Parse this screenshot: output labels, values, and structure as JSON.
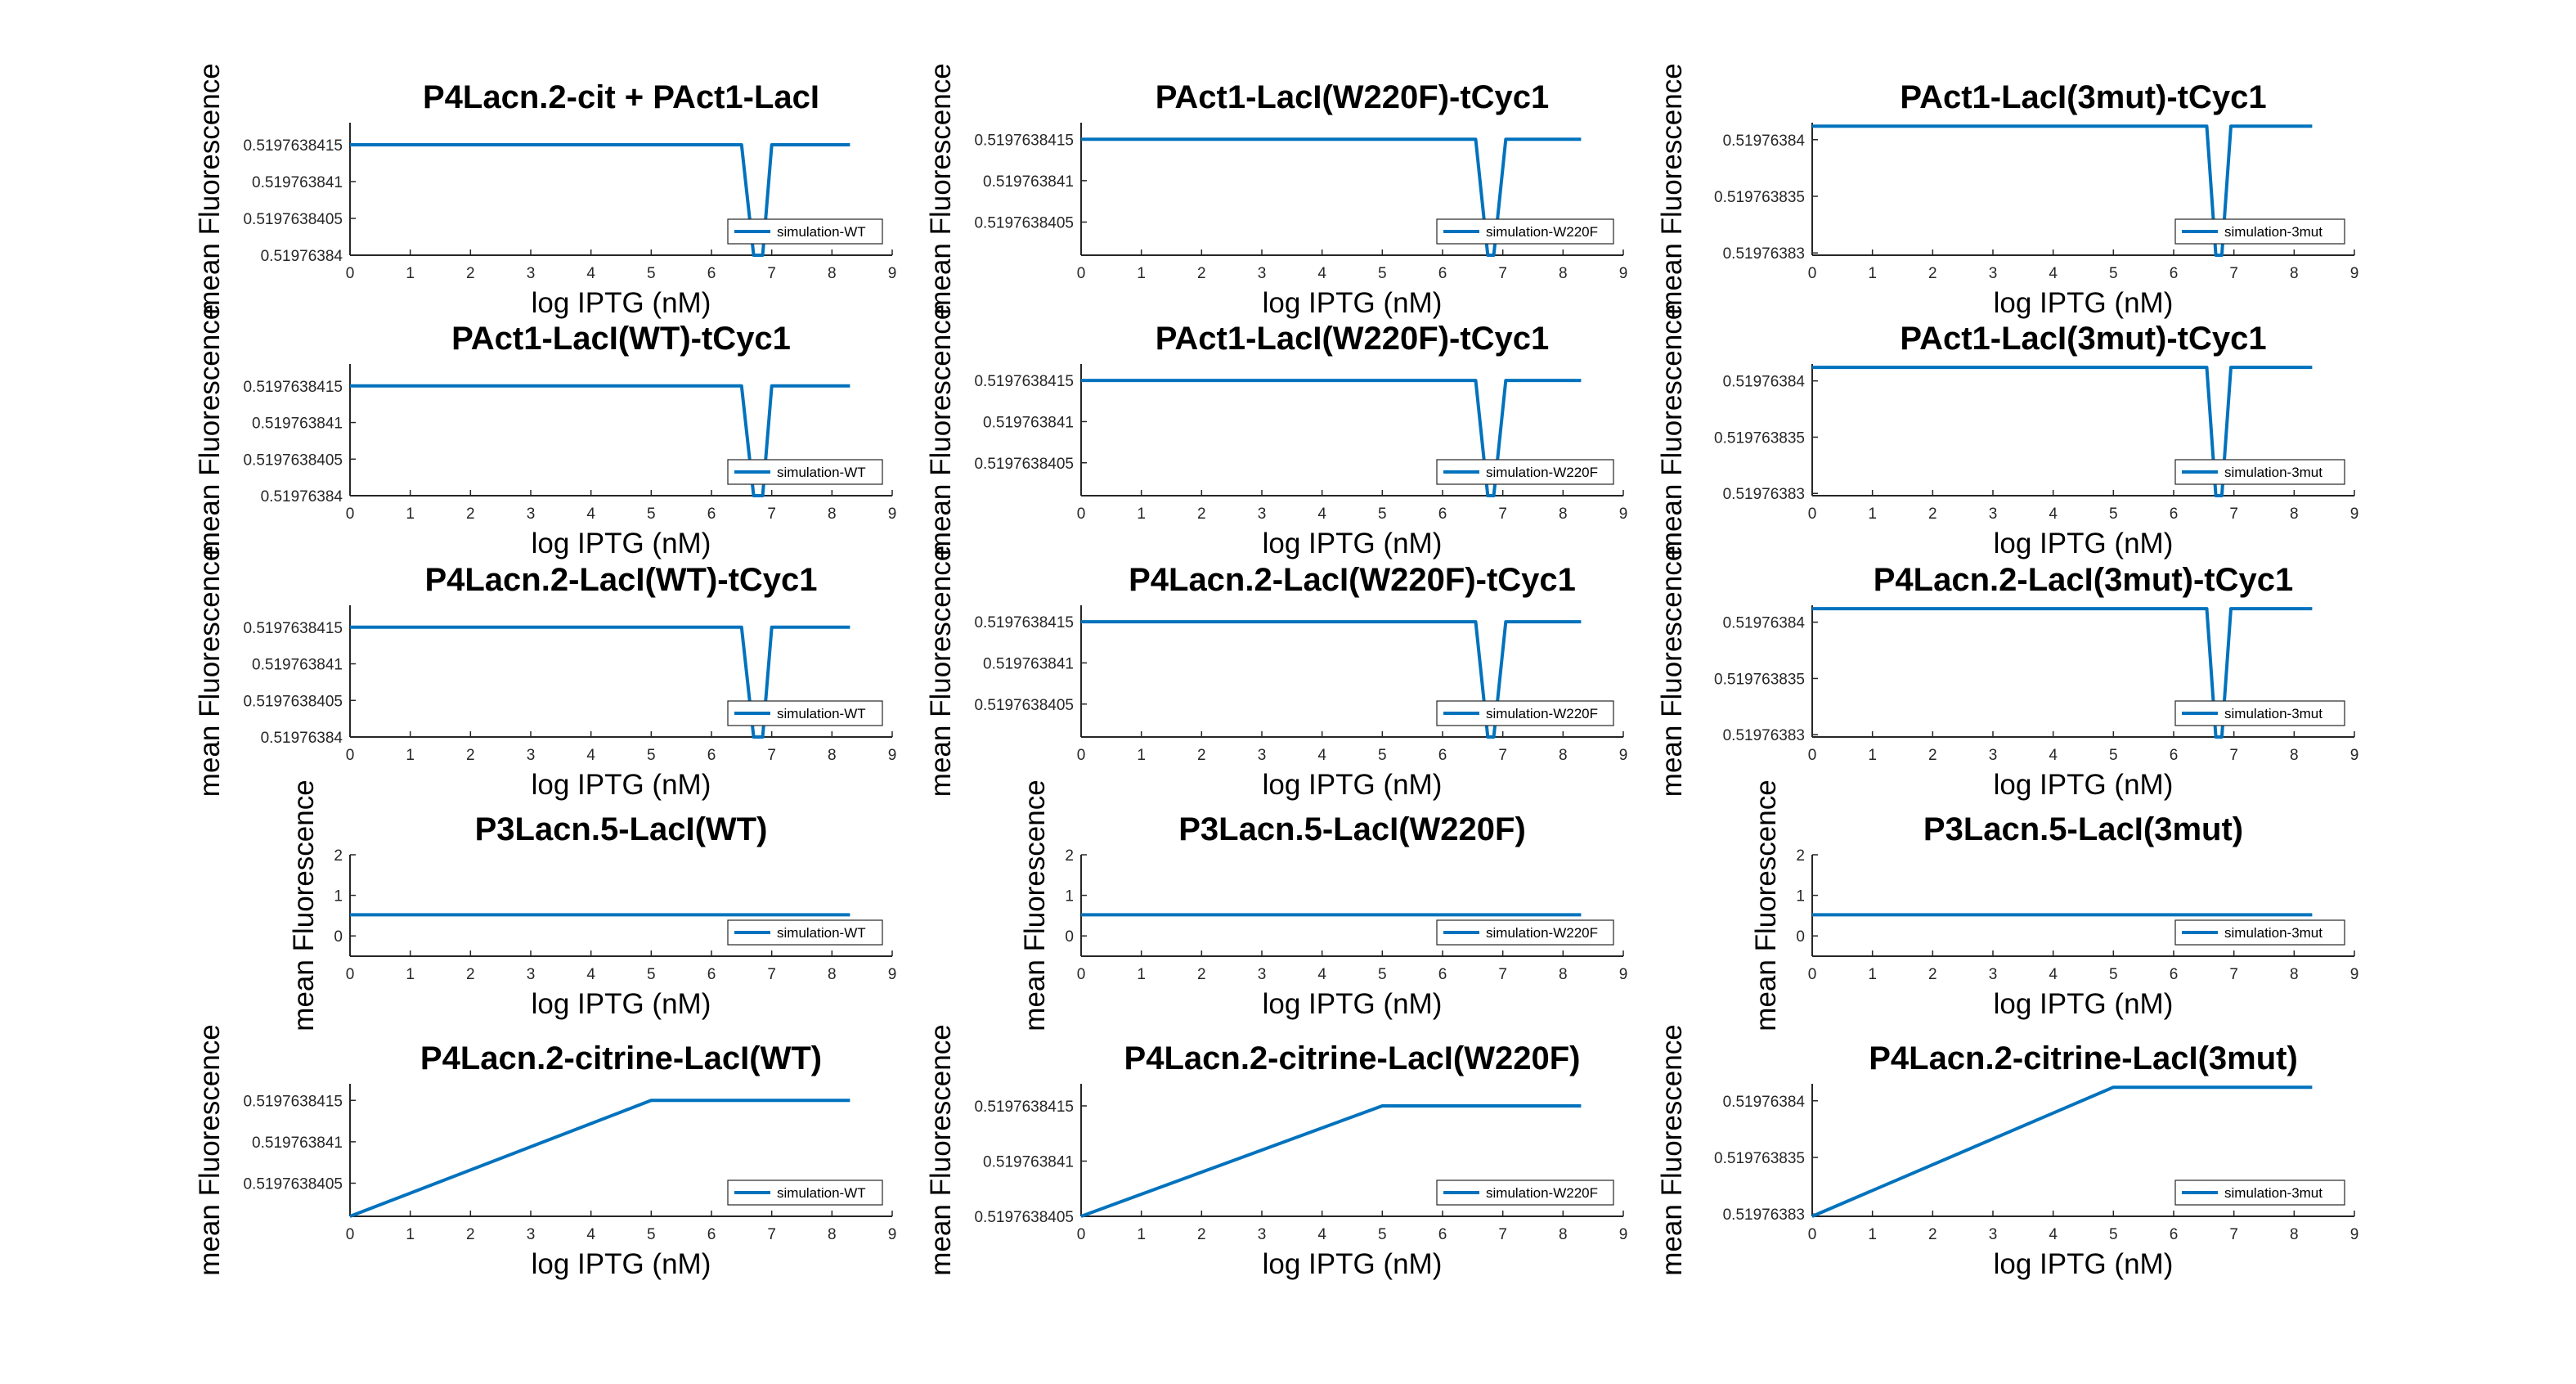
{
  "figure": {
    "background": "#ffffff",
    "line_color": "#0072BD"
  },
  "chart_data": [
    {
      "type": "line",
      "title": "P4Lacn.2-cit + PAct1-LacI",
      "xlabel": "log IPTG (nM)",
      "ylabel": "mean Fluorescence",
      "xlim": [
        0,
        9
      ],
      "ylim": [
        0.51976384,
        0.5197638418
      ],
      "xticks": [
        "0",
        "1",
        "2",
        "3",
        "4",
        "5",
        "6",
        "7",
        "8",
        "9"
      ],
      "yticks": [
        {
          "v": 0.51976384,
          "label": "0.51976384"
        },
        {
          "v": 0.5197638405,
          "label": "0.5197638405"
        },
        {
          "v": 0.519763841,
          "label": "0.519763841"
        },
        {
          "v": 0.5197638415,
          "label": "0.5197638415"
        }
      ],
      "series": [
        {
          "name": "simulation-WT",
          "x": [
            0,
            6.5,
            6.7,
            6.85,
            7.0,
            8.3
          ],
          "y": [
            0.5197638415,
            0.5197638415,
            0.51976384,
            0.51976384,
            0.5197638415,
            0.5197638415
          ]
        }
      ],
      "legend": "bottom-right"
    },
    {
      "type": "line",
      "title": "PAct1-LacI(W220F)-tCyc1",
      "xlabel": "log IPTG (nM)",
      "ylabel": "mean Fluorescence",
      "xlim": [
        0,
        9
      ],
      "ylim": [
        0.5197638401,
        0.5197638417
      ],
      "xticks": [
        "0",
        "1",
        "2",
        "3",
        "4",
        "5",
        "6",
        "7",
        "8",
        "9"
      ],
      "yticks": [
        {
          "v": 0.5197638405,
          "label": "0.5197638405"
        },
        {
          "v": 0.519763841,
          "label": "0.519763841"
        },
        {
          "v": 0.5197638415,
          "label": "0.5197638415"
        }
      ],
      "series": [
        {
          "name": "simulation-W220F",
          "x": [
            0,
            6.55,
            6.75,
            6.85,
            7.05,
            8.3
          ],
          "y": [
            0.5197638415,
            0.5197638415,
            0.5197638401,
            0.5197638401,
            0.5197638415,
            0.5197638415
          ]
        }
      ],
      "legend": "bottom-right"
    },
    {
      "type": "line",
      "title": "PAct1-LacI(3mut)-tCyc1",
      "xlabel": "log IPTG (nM)",
      "ylabel": "mean Fluorescence",
      "xlim": [
        0,
        9
      ],
      "ylim": [
        0.5197638298,
        0.5197638415
      ],
      "xticks": [
        "0",
        "1",
        "2",
        "3",
        "4",
        "5",
        "6",
        "7",
        "8",
        "9"
      ],
      "yticks": [
        {
          "v": 0.51976383,
          "label": "0.51976383"
        },
        {
          "v": 0.519763835,
          "label": "0.519763835"
        },
        {
          "v": 0.51976384,
          "label": "0.51976384"
        }
      ],
      "series": [
        {
          "name": "simulation-3mut",
          "x": [
            0,
            6.55,
            6.7,
            6.8,
            6.95,
            8.3
          ],
          "y": [
            0.5197638412,
            0.5197638412,
            0.5197638298,
            0.5197638298,
            0.5197638412,
            0.5197638412
          ]
        }
      ],
      "legend": "bottom-right"
    },
    {
      "type": "line",
      "title": "PAct1-LacI(WT)-tCyc1",
      "xlabel": "log IPTG (nM)",
      "ylabel": "mean Fluorescence",
      "xlim": [
        0,
        9
      ],
      "ylim": [
        0.51976384,
        0.5197638418
      ],
      "xticks": [
        "0",
        "1",
        "2",
        "3",
        "4",
        "5",
        "6",
        "7",
        "8",
        "9"
      ],
      "yticks": [
        {
          "v": 0.51976384,
          "label": "0.51976384"
        },
        {
          "v": 0.5197638405,
          "label": "0.5197638405"
        },
        {
          "v": 0.519763841,
          "label": "0.519763841"
        },
        {
          "v": 0.5197638415,
          "label": "0.5197638415"
        }
      ],
      "series": [
        {
          "name": "simulation-WT",
          "x": [
            0,
            6.5,
            6.7,
            6.85,
            7.0,
            8.3
          ],
          "y": [
            0.5197638415,
            0.5197638415,
            0.51976384,
            0.51976384,
            0.5197638415,
            0.5197638415
          ]
        }
      ],
      "legend": "bottom-right"
    },
    {
      "type": "line",
      "title": "PAct1-LacI(W220F)-tCyc1",
      "xlabel": "log IPTG (nM)",
      "ylabel": "mean Fluorescence",
      "xlim": [
        0,
        9
      ],
      "ylim": [
        0.5197638401,
        0.5197638417
      ],
      "xticks": [
        "0",
        "1",
        "2",
        "3",
        "4",
        "5",
        "6",
        "7",
        "8",
        "9"
      ],
      "yticks": [
        {
          "v": 0.5197638405,
          "label": "0.5197638405"
        },
        {
          "v": 0.519763841,
          "label": "0.519763841"
        },
        {
          "v": 0.5197638415,
          "label": "0.5197638415"
        }
      ],
      "series": [
        {
          "name": "simulation-W220F",
          "x": [
            0,
            6.55,
            6.75,
            6.85,
            7.05,
            8.3
          ],
          "y": [
            0.5197638415,
            0.5197638415,
            0.5197638401,
            0.5197638401,
            0.5197638415,
            0.5197638415
          ]
        }
      ],
      "legend": "bottom-right"
    },
    {
      "type": "line",
      "title": "PAct1-LacI(3mut)-tCyc1",
      "xlabel": "log IPTG (nM)",
      "ylabel": "mean Fluorescence",
      "xlim": [
        0,
        9
      ],
      "ylim": [
        0.5197638298,
        0.5197638415
      ],
      "xticks": [
        "0",
        "1",
        "2",
        "3",
        "4",
        "5",
        "6",
        "7",
        "8",
        "9"
      ],
      "yticks": [
        {
          "v": 0.51976383,
          "label": "0.51976383"
        },
        {
          "v": 0.519763835,
          "label": "0.519763835"
        },
        {
          "v": 0.51976384,
          "label": "0.51976384"
        }
      ],
      "series": [
        {
          "name": "simulation-3mut",
          "x": [
            0,
            6.55,
            6.7,
            6.8,
            6.95,
            8.3
          ],
          "y": [
            0.5197638412,
            0.5197638412,
            0.5197638298,
            0.5197638298,
            0.5197638412,
            0.5197638412
          ]
        }
      ],
      "legend": "bottom-right"
    },
    {
      "type": "line",
      "title": "P4Lacn.2-LacI(WT)-tCyc1",
      "xlabel": "log IPTG (nM)",
      "ylabel": "mean Fluorescence",
      "xlim": [
        0,
        9
      ],
      "ylim": [
        0.51976384,
        0.5197638418
      ],
      "xticks": [
        "0",
        "1",
        "2",
        "3",
        "4",
        "5",
        "6",
        "7",
        "8",
        "9"
      ],
      "yticks": [
        {
          "v": 0.51976384,
          "label": "0.51976384"
        },
        {
          "v": 0.5197638405,
          "label": "0.5197638405"
        },
        {
          "v": 0.519763841,
          "label": "0.519763841"
        },
        {
          "v": 0.5197638415,
          "label": "0.5197638415"
        }
      ],
      "series": [
        {
          "name": "simulation-WT",
          "x": [
            0,
            6.5,
            6.7,
            6.85,
            7.0,
            8.3
          ],
          "y": [
            0.5197638415,
            0.5197638415,
            0.51976384,
            0.51976384,
            0.5197638415,
            0.5197638415
          ]
        }
      ],
      "legend": "bottom-right"
    },
    {
      "type": "line",
      "title": "P4Lacn.2-LacI(W220F)-tCyc1",
      "xlabel": "log IPTG (nM)",
      "ylabel": "mean Fluorescence",
      "xlim": [
        0,
        9
      ],
      "ylim": [
        0.5197638401,
        0.5197638417
      ],
      "xticks": [
        "0",
        "1",
        "2",
        "3",
        "4",
        "5",
        "6",
        "7",
        "8",
        "9"
      ],
      "yticks": [
        {
          "v": 0.5197638405,
          "label": "0.5197638405"
        },
        {
          "v": 0.519763841,
          "label": "0.519763841"
        },
        {
          "v": 0.5197638415,
          "label": "0.5197638415"
        }
      ],
      "series": [
        {
          "name": "simulation-W220F",
          "x": [
            0,
            6.55,
            6.75,
            6.85,
            7.05,
            8.3
          ],
          "y": [
            0.5197638415,
            0.5197638415,
            0.5197638401,
            0.5197638401,
            0.5197638415,
            0.5197638415
          ]
        }
      ],
      "legend": "bottom-right"
    },
    {
      "type": "line",
      "title": "P4Lacn.2-LacI(3mut)-tCyc1",
      "xlabel": "log IPTG (nM)",
      "ylabel": "mean Fluorescence",
      "xlim": [
        0,
        9
      ],
      "ylim": [
        0.5197638298,
        0.5197638415
      ],
      "xticks": [
        "0",
        "1",
        "2",
        "3",
        "4",
        "5",
        "6",
        "7",
        "8",
        "9"
      ],
      "yticks": [
        {
          "v": 0.51976383,
          "label": "0.51976383"
        },
        {
          "v": 0.519763835,
          "label": "0.519763835"
        },
        {
          "v": 0.51976384,
          "label": "0.51976384"
        }
      ],
      "series": [
        {
          "name": "simulation-3mut",
          "x": [
            0,
            6.55,
            6.7,
            6.8,
            6.95,
            8.3
          ],
          "y": [
            0.5197638412,
            0.5197638412,
            0.5197638298,
            0.5197638298,
            0.5197638412,
            0.5197638412
          ]
        }
      ],
      "legend": "bottom-right"
    },
    {
      "type": "line",
      "title": "P3Lacn.5-LacI(WT)",
      "xlabel": "log IPTG (nM)",
      "ylabel": "mean Fluorescence",
      "xlim": [
        0,
        9
      ],
      "ylim": [
        -0.5,
        2
      ],
      "xticks": [
        "0",
        "1",
        "2",
        "3",
        "4",
        "5",
        "6",
        "7",
        "8",
        "9"
      ],
      "yticks": [
        {
          "v": 0,
          "label": "0"
        },
        {
          "v": 1,
          "label": "1"
        },
        {
          "v": 2,
          "label": "2"
        }
      ],
      "series": [
        {
          "name": "simulation-WT",
          "x": [
            0,
            8.3
          ],
          "y": [
            0.52,
            0.52
          ]
        }
      ],
      "legend": "bottom-right"
    },
    {
      "type": "line",
      "title": "P3Lacn.5-LacI(W220F)",
      "xlabel": "log IPTG (nM)",
      "ylabel": "mean Fluorescence",
      "xlim": [
        0,
        9
      ],
      "ylim": [
        -0.5,
        2
      ],
      "xticks": [
        "0",
        "1",
        "2",
        "3",
        "4",
        "5",
        "6",
        "7",
        "8",
        "9"
      ],
      "yticks": [
        {
          "v": 0,
          "label": "0"
        },
        {
          "v": 1,
          "label": "1"
        },
        {
          "v": 2,
          "label": "2"
        }
      ],
      "series": [
        {
          "name": "simulation-W220F",
          "x": [
            0,
            8.3
          ],
          "y": [
            0.52,
            0.52
          ]
        }
      ],
      "legend": "bottom-right"
    },
    {
      "type": "line",
      "title": "P3Lacn.5-LacI(3mut)",
      "xlabel": "log IPTG (nM)",
      "ylabel": "mean Fluorescence",
      "xlim": [
        0,
        9
      ],
      "ylim": [
        -0.5,
        2
      ],
      "xticks": [
        "0",
        "1",
        "2",
        "3",
        "4",
        "5",
        "6",
        "7",
        "8",
        "9"
      ],
      "yticks": [
        {
          "v": 0,
          "label": "0"
        },
        {
          "v": 1,
          "label": "1"
        },
        {
          "v": 2,
          "label": "2"
        }
      ],
      "series": [
        {
          "name": "simulation-3mut",
          "x": [
            0,
            8.3
          ],
          "y": [
            0.52,
            0.52
          ]
        }
      ],
      "legend": "bottom-right"
    },
    {
      "type": "line",
      "title": "P4Lacn.2-citrine-LacI(WT)",
      "xlabel": "log IPTG (nM)",
      "ylabel": "mean Fluorescence",
      "xlim": [
        0,
        9
      ],
      "ylim": [
        0.5197638401,
        0.5197638417
      ],
      "xticks": [
        "0",
        "1",
        "2",
        "3",
        "4",
        "5",
        "6",
        "7",
        "8",
        "9"
      ],
      "yticks": [
        {
          "v": 0.5197638405,
          "label": "0.5197638405"
        },
        {
          "v": 0.519763841,
          "label": "0.519763841"
        },
        {
          "v": 0.5197638415,
          "label": "0.5197638415"
        }
      ],
      "series": [
        {
          "name": "simulation-WT",
          "x": [
            0,
            5,
            8.3
          ],
          "y": [
            0.5197638401,
            0.5197638415,
            0.5197638415
          ]
        }
      ],
      "legend": "bottom-right"
    },
    {
      "type": "line",
      "title": "P4Lacn.2-citrine-LacI(W220F)",
      "xlabel": "log IPTG (nM)",
      "ylabel": "mean Fluorescence",
      "xlim": [
        0,
        9
      ],
      "ylim": [
        0.5197638405,
        0.5197638417
      ],
      "xticks": [
        "0",
        "1",
        "2",
        "3",
        "4",
        "5",
        "6",
        "7",
        "8",
        "9"
      ],
      "yticks": [
        {
          "v": 0.5197638405,
          "label": "0.5197638405"
        },
        {
          "v": 0.519763841,
          "label": "0.519763841"
        },
        {
          "v": 0.5197638415,
          "label": "0.5197638415"
        }
      ],
      "series": [
        {
          "name": "simulation-W220F",
          "x": [
            0,
            5,
            8.3
          ],
          "y": [
            0.5197638405,
            0.5197638415,
            0.5197638415
          ]
        }
      ],
      "legend": "bottom-right"
    },
    {
      "type": "line",
      "title": "P4Lacn.2-citrine-LacI(3mut)",
      "xlabel": "log IPTG (nM)",
      "ylabel": "mean Fluorescence",
      "xlim": [
        0,
        9
      ],
      "ylim": [
        0.5197638298,
        0.5197638415
      ],
      "xticks": [
        "0",
        "1",
        "2",
        "3",
        "4",
        "5",
        "6",
        "7",
        "8",
        "9"
      ],
      "yticks": [
        {
          "v": 0.51976383,
          "label": "0.51976383"
        },
        {
          "v": 0.519763835,
          "label": "0.519763835"
        },
        {
          "v": 0.51976384,
          "label": "0.51976384"
        }
      ],
      "series": [
        {
          "name": "simulation-3mut",
          "x": [
            0,
            5,
            8.3
          ],
          "y": [
            0.5197638298,
            0.5197638412,
            0.5197638412
          ]
        }
      ],
      "legend": "bottom-right"
    }
  ]
}
